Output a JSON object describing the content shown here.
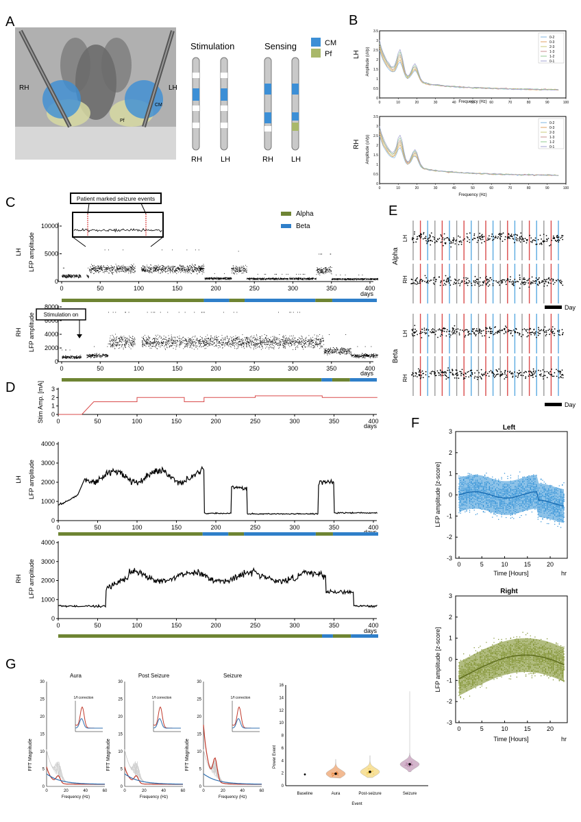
{
  "panels": {
    "A": "A",
    "B": "B",
    "C": "C",
    "D": "D",
    "E": "E",
    "F": "F",
    "G": "G"
  },
  "colors": {
    "cm": "#3c8fd6",
    "pf": "#a9b86a",
    "alpha": "#6e8433",
    "beta": "#2f7fc9",
    "stim": "#d94a4a",
    "left": "#2f8fd6",
    "right": "#7d8f2c"
  },
  "panel_a": {
    "rh": "RH",
    "lh": "LH",
    "cm_label": "CM",
    "pf_label": "Pf",
    "stimulation": "Stimulation",
    "sensing": "Sensing",
    "legend_cm": "CM",
    "legend_pf": "Pf",
    "lead_labels": [
      "RH",
      "LH",
      "RH",
      "LH"
    ]
  },
  "panel_b": {
    "hemis": [
      "LH",
      "RH"
    ],
    "ylabel": "Amplitude (uVp)",
    "xlabel": "Frequency (Hz)",
    "xticks": [
      "0",
      "10",
      "20",
      "30",
      "40",
      "50",
      "60",
      "70",
      "80",
      "90",
      "100"
    ],
    "yticks": [
      "0",
      "0.5",
      "1",
      "1.5",
      "2",
      "2.5",
      "3",
      "3.5"
    ],
    "legend": [
      "0-2",
      "0-3",
      "2-3",
      "1-3",
      "1-2",
      "0-1"
    ]
  },
  "panel_c": {
    "callout": "Patient marked seizure events",
    "stim_on": "Stimulation on",
    "legend_alpha": "Alpha",
    "legend_beta": "Beta",
    "lh": "LH",
    "rh": "RH",
    "ylabel": "LFP amplitude",
    "lh_yticks": [
      "0",
      "5000",
      "10000"
    ],
    "rh_yticks": [
      "0",
      "2000",
      "4000",
      "6000",
      "8000"
    ],
    "xticks": [
      "0",
      "50",
      "100",
      "150",
      "200",
      "250",
      "300",
      "350",
      "400"
    ],
    "xunit": "days"
  },
  "panel_d": {
    "stim_ylabel": "Stim Amp. [mA]",
    "stim_yticks": [
      "0",
      "1",
      "2",
      "3"
    ],
    "lh": "LH",
    "rh": "RH",
    "ylabel": "LFP amplitude",
    "lh_yticks": [
      "0",
      "1000",
      "2000",
      "3000",
      "4000"
    ],
    "rh_yticks": [
      "0",
      "1000",
      "2000",
      "3000",
      "4000"
    ],
    "xticks": [
      "0",
      "50",
      "100",
      "150",
      "200",
      "250",
      "300",
      "350",
      "400"
    ],
    "xunit": "days"
  },
  "panel_e": {
    "alpha": "Alpha",
    "beta": "Beta",
    "lh": "LH",
    "rh": "RH",
    "day": "Day"
  },
  "panel_f": {
    "left": "Left",
    "right": "Right",
    "ylabel": "LFP amplitude [z-score]",
    "xlabel": "Time [Hours]",
    "xunit": "hr",
    "yticks": [
      "-3",
      "-2",
      "-1",
      "0",
      "1",
      "2",
      "3"
    ],
    "xticks": [
      "0",
      "5",
      "10",
      "15",
      "20"
    ]
  },
  "panel_g": {
    "titles": [
      "Aura",
      "Post Seizure",
      "Seizure"
    ],
    "inset": "1/f correction",
    "ylabel": "FFT Magnitude",
    "xlabel": "Frequency (Hz)",
    "yticks": [
      "0",
      "5",
      "10",
      "15",
      "20",
      "25",
      "30"
    ],
    "xticks": [
      "0",
      "20",
      "40",
      "60"
    ],
    "violin_ylabel": "Power Event",
    "violin_yticks": [
      "0",
      "2",
      "4",
      "6",
      "8",
      "10",
      "12",
      "14",
      "16"
    ],
    "violin_categories": [
      "Baseline",
      "Aura",
      "Post-seizure",
      "Seizure"
    ],
    "violin_xlabel": "Event"
  }
}
